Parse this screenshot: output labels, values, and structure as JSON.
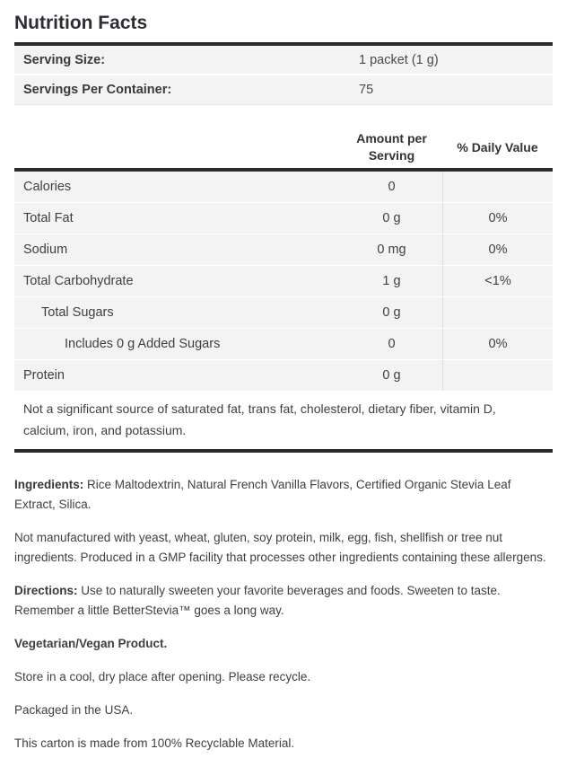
{
  "title": "Nutrition Facts",
  "colors": {
    "border_dark": "#2a2a2a",
    "row_background": "#f3f3f3",
    "column_divider": "#dedede",
    "title_text": "#2d2d33",
    "body_text": "#3f3f3f"
  },
  "serving_info": {
    "rows": [
      {
        "label": "Serving Size:",
        "value": "1 packet (1 g)"
      },
      {
        "label": "Servings Per Container:",
        "value": "75"
      }
    ]
  },
  "nutrition_table": {
    "amount_header": "Amount per Serving",
    "dv_header": "% Daily Value",
    "rows": [
      {
        "label": "Calories",
        "amount": "0",
        "dv": ""
      },
      {
        "label": "Total Fat",
        "amount": "0 g",
        "dv": "0%"
      },
      {
        "label": "Sodium",
        "amount": "0 mg",
        "dv": "0%"
      },
      {
        "label": "Total Carbohydrate",
        "amount": "1 g",
        "dv": "<1%"
      },
      {
        "label": "Total Sugars",
        "amount": "0 g",
        "dv": ""
      },
      {
        "label": "Includes 0 g Added Sugars",
        "amount": "0",
        "dv": "0%"
      },
      {
        "label": "Protein",
        "amount": "0 g",
        "dv": ""
      }
    ],
    "footnote": "Not a significant source of saturated fat, trans fat, cholesterol, dietary fiber, vitamin D, calcium, iron, and potassium."
  },
  "details": {
    "ingredients_label": "Ingredients:",
    "ingredients_text": " Rice Maltodextrin, Natural French Vanilla Flavors, Certified Organic Stevia Leaf Extract, Silica.",
    "allergen_text": "Not manufactured with yeast, wheat, gluten, soy protein, milk, egg, fish, shellfish or tree nut ingredients. Produced in a GMP facility that processes other ingredients containing these allergens.",
    "directions_label": "Directions:",
    "directions_text": " Use to naturally sweeten your favorite beverages and foods. Sweeten to taste. Remember a little BetterStevia™ goes a long way.",
    "vegetarian_text": "Vegetarian/Vegan Product.",
    "storage_text": "Store in a cool, dry place after opening. Please recycle.",
    "packaged_text": "Packaged in the USA.",
    "recyclable_text": "This carton is made from 100% Recyclable Material."
  }
}
